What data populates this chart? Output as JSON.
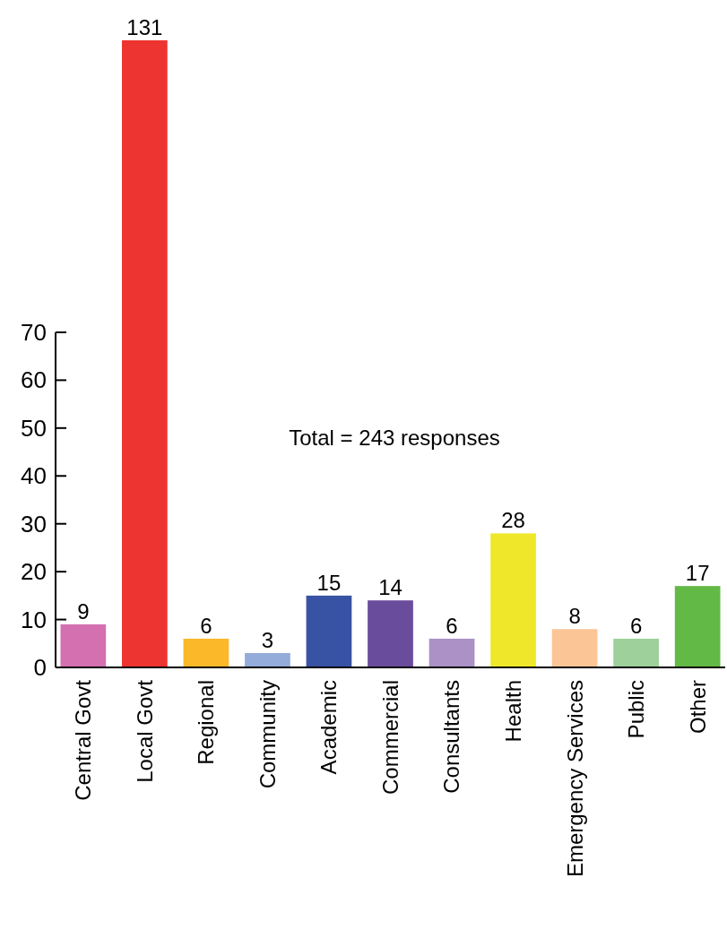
{
  "chart_data": {
    "type": "bar",
    "categories": [
      "Central Govt",
      "Local Govt",
      "Regional",
      "Community",
      "Academic",
      "Commercial",
      "Consultants",
      "Health",
      "Emergency Services",
      "Public",
      "Other"
    ],
    "values": [
      9,
      131,
      6,
      3,
      15,
      14,
      6,
      28,
      8,
      6,
      17
    ],
    "colors": [
      "#d470b0",
      "#ee3430",
      "#fbb829",
      "#93acd9",
      "#3953a4",
      "#6a4c9c",
      "#ab91c6",
      "#efe82a",
      "#fbc596",
      "#9dd09a",
      "#62b946"
    ],
    "ylim": [
      0,
      131
    ],
    "yticks": [
      0,
      10,
      20,
      30,
      40,
      50,
      60,
      70
    ],
    "data_labels": true,
    "grid": false,
    "annotations": [
      "Total = 243 responses"
    ]
  }
}
